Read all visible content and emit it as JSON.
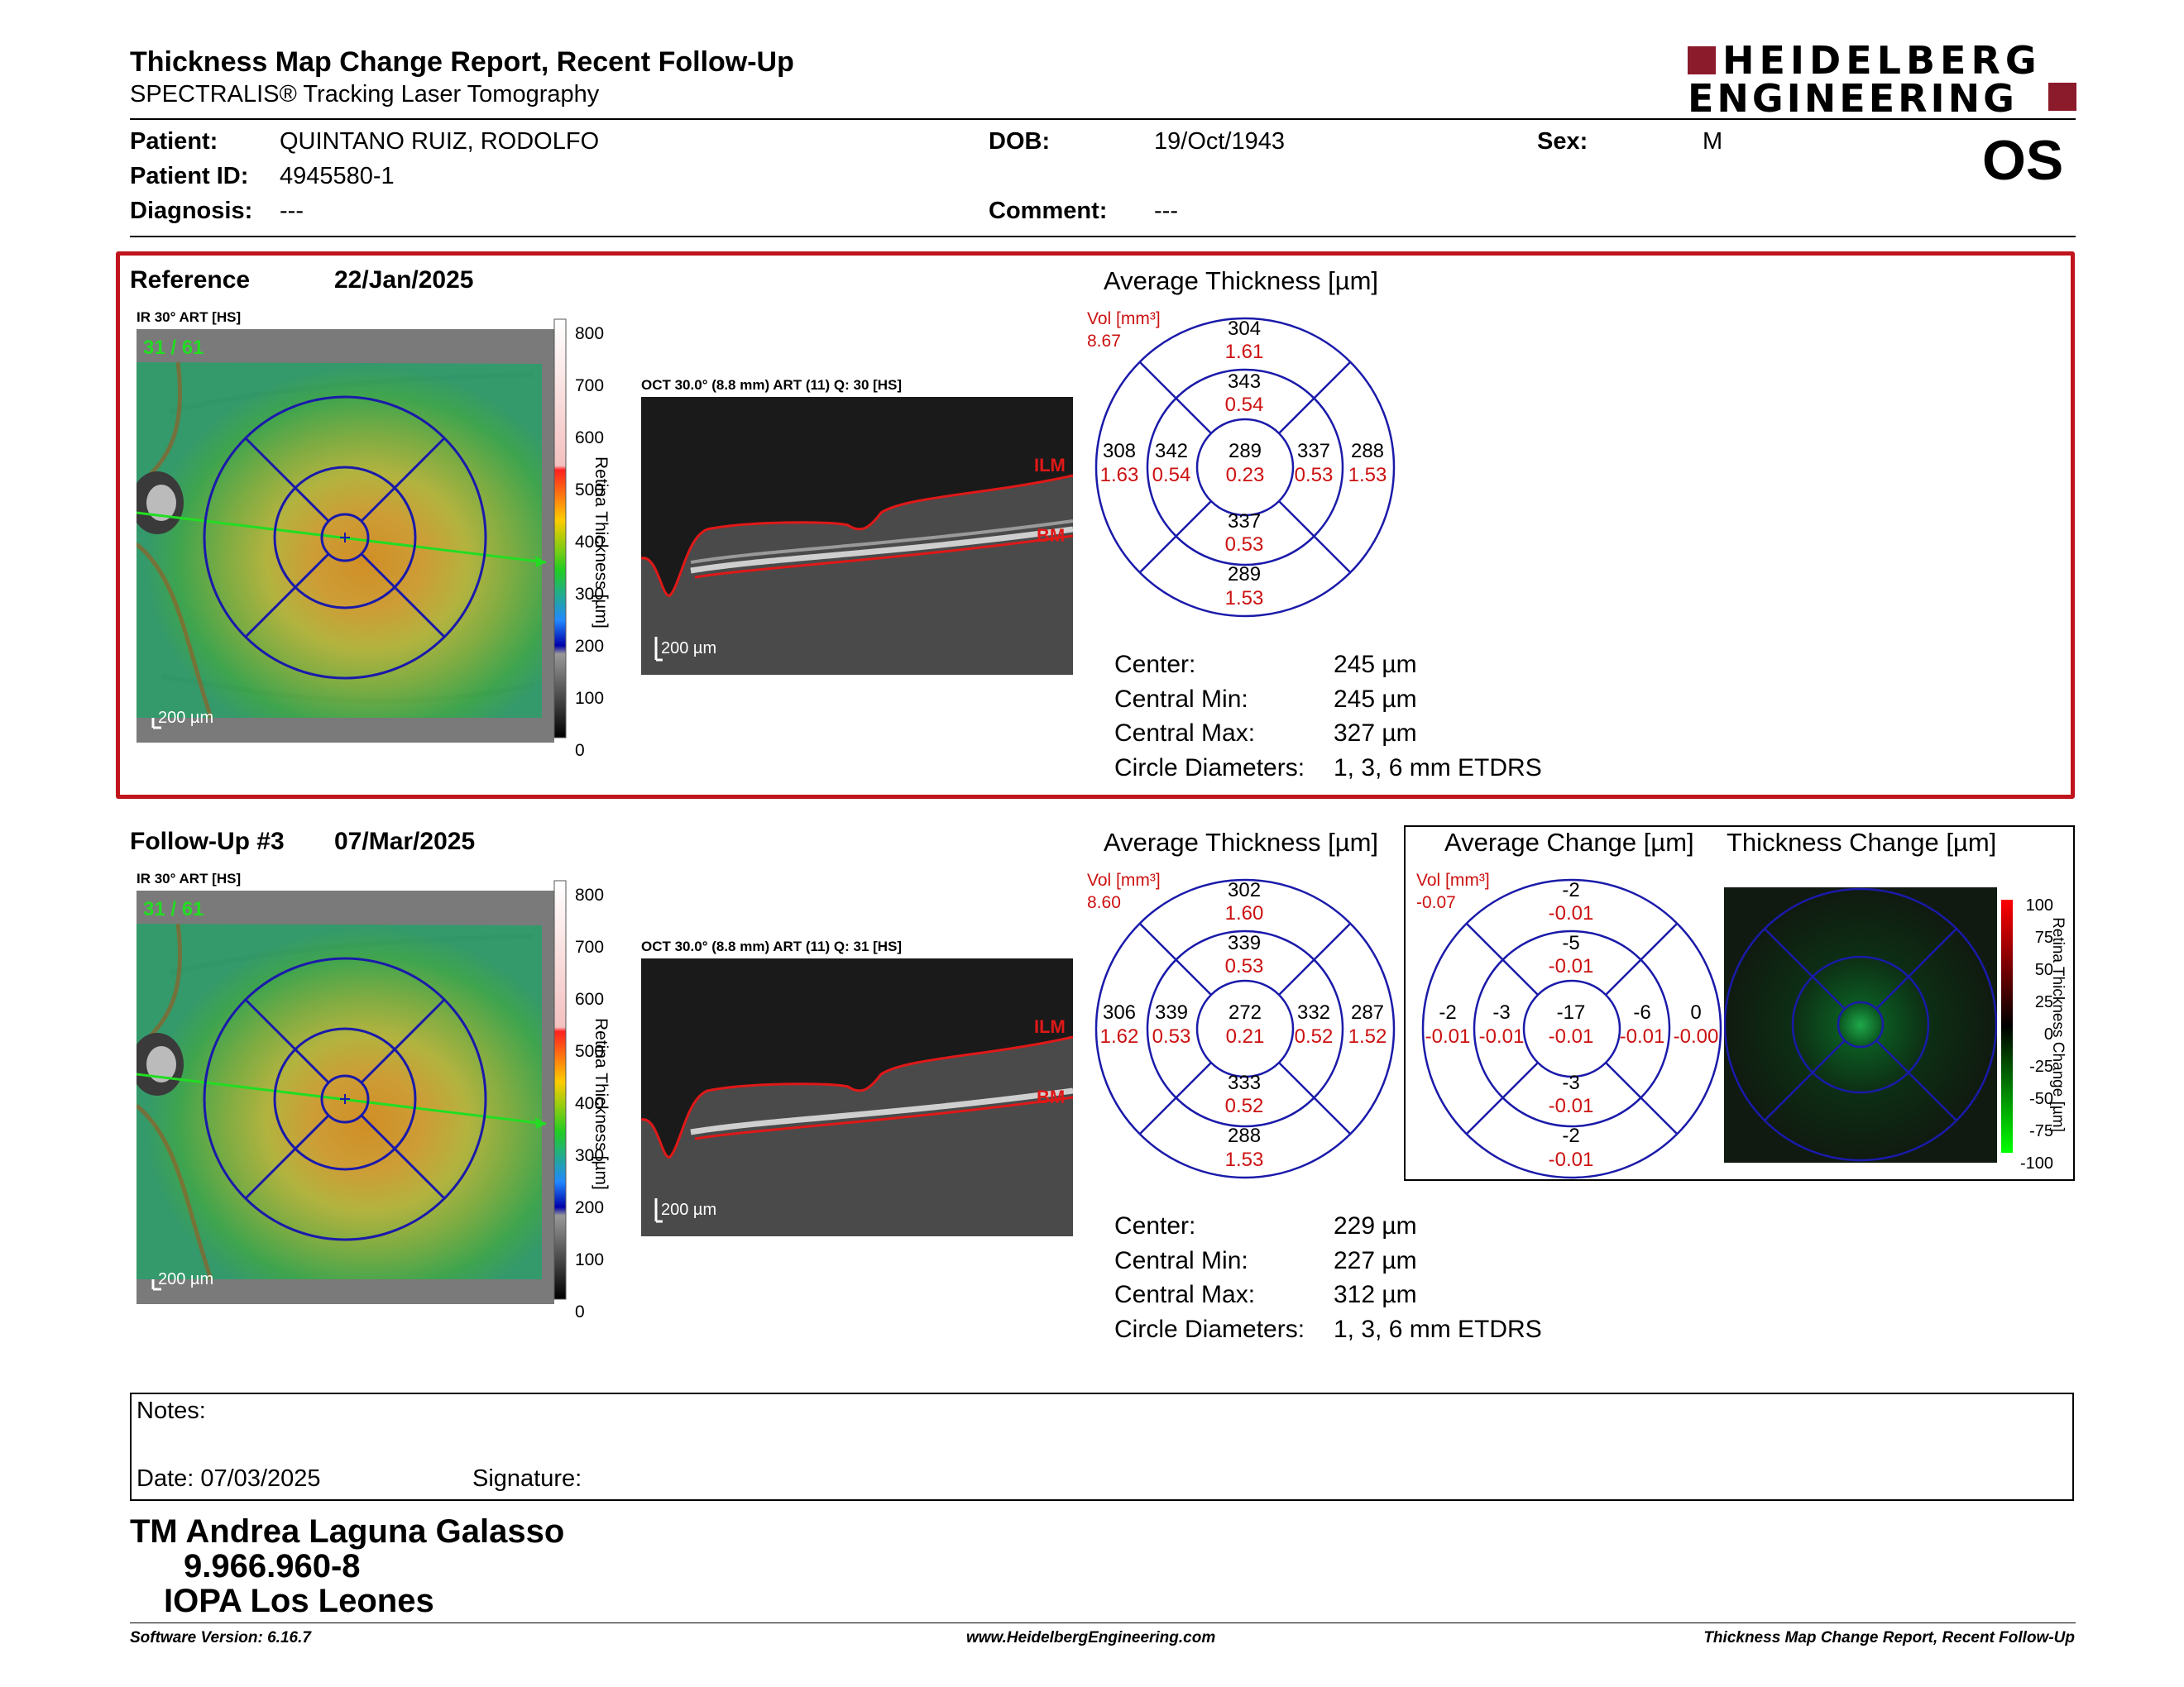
{
  "header": {
    "title": "Thickness Map Change Report, Recent Follow-Up",
    "subtitle": "SPECTRALIS® Tracking Laser Tomography",
    "logo_line1": "HEIDELBERG",
    "logo_line2": "ENGINEERING",
    "eye": "OS"
  },
  "patient": {
    "patient_label": "Patient:",
    "patient_value": "QUINTANO RUIZ, RODOLFO",
    "dob_label": "DOB:",
    "dob_value": "19/Oct/1943",
    "sex_label": "Sex:",
    "sex_value": "M",
    "id_label": "Patient ID:",
    "id_value": "4945580-1",
    "diagnosis_label": "Diagnosis:",
    "diagnosis_value": "---",
    "comment_label": "Comment:",
    "comment_value": "---"
  },
  "reference": {
    "label": "Reference",
    "date": "22/Jan/2025",
    "ir_label": "IR 30° ART [HS]",
    "counter": "31 / 61",
    "scale_ticks": [
      "800",
      "700",
      "600",
      "500",
      "400",
      "300",
      "200",
      "100",
      "0"
    ],
    "scale_title": "Retina Thickness [µm]",
    "oct_label": "OCT 30.0° (8.8 mm) ART (11) Q: 30 [HS]",
    "ilm": "ILM",
    "bm": "BM",
    "scalebar": "200 µm",
    "avg_title": "Average Thickness [µm]",
    "vol_label": "Vol [mm³]",
    "vol_total": "8.67",
    "etdrs": {
      "sup_outer": [
        "304",
        "1.61"
      ],
      "sup_inner": [
        "343",
        "0.54"
      ],
      "temp_outer": [
        "308",
        "1.63"
      ],
      "temp_inner": [
        "342",
        "0.54"
      ],
      "center": [
        "289",
        "0.23"
      ],
      "nas_inner": [
        "337",
        "0.53"
      ],
      "nas_outer": [
        "288",
        "1.53"
      ],
      "inf_inner": [
        "337",
        "0.53"
      ],
      "inf_outer": [
        "289",
        "1.53"
      ]
    },
    "stats": {
      "center_label": "Center:",
      "center_value": "245 µm",
      "min_label": "Central Min:",
      "min_value": "245 µm",
      "max_label": "Central Max:",
      "max_value": "327 µm",
      "circ_label": "Circle Diameters:",
      "circ_value": "1, 3, 6 mm ETDRS"
    }
  },
  "followup": {
    "label": "Follow-Up #3",
    "date": "07/Mar/2025",
    "ir_label": "IR 30° ART [HS]",
    "counter": "31 / 61",
    "oct_label": "OCT 30.0° (8.8 mm) ART (11) Q: 31 [HS]",
    "avg_title": "Average Thickness [µm]",
    "vol_label": "Vol [mm³]",
    "vol_total": "8.60",
    "etdrs": {
      "sup_outer": [
        "302",
        "1.60"
      ],
      "sup_inner": [
        "339",
        "0.53"
      ],
      "temp_outer": [
        "306",
        "1.62"
      ],
      "temp_inner": [
        "339",
        "0.53"
      ],
      "center": [
        "272",
        "0.21"
      ],
      "nas_inner": [
        "332",
        "0.52"
      ],
      "nas_outer": [
        "287",
        "1.52"
      ],
      "inf_inner": [
        "333",
        "0.52"
      ],
      "inf_outer": [
        "288",
        "1.53"
      ]
    },
    "stats": {
      "center_label": "Center:",
      "center_value": "229 µm",
      "min_label": "Central Min:",
      "min_value": "227 µm",
      "max_label": "Central Max:",
      "max_value": "312 µm",
      "circ_label": "Circle Diameters:",
      "circ_value": "1, 3, 6 mm ETDRS"
    },
    "change_title": "Average Change [µm]",
    "change_vol_label": "Vol [mm³]",
    "change_vol_total": "-0.07",
    "change": {
      "sup_outer": [
        "-2",
        "-0.01"
      ],
      "sup_inner": [
        "-5",
        "-0.01"
      ],
      "temp_outer": [
        "-2",
        "-0.01"
      ],
      "temp_inner": [
        "-3",
        "-0.01"
      ],
      "center": [
        "-17",
        "-0.01"
      ],
      "nas_inner": [
        "-6",
        "-0.01"
      ],
      "nas_outer": [
        "0",
        "-0.00"
      ],
      "inf_inner": [
        "-3",
        "-0.01"
      ],
      "inf_outer": [
        "-2",
        "-0.01"
      ]
    },
    "tc_title": "Thickness Change [µm]",
    "tc_ticks": [
      "100",
      "75",
      "50",
      "25",
      "0",
      "-25",
      "-50",
      "-75",
      "-100"
    ],
    "tc_scale_title": "Retina Thickness Change [µm]"
  },
  "notes": {
    "notes_label": "Notes:",
    "date_label": "Date: 07/03/2025",
    "signature_label": "Signature:"
  },
  "signature": {
    "name": "TM Andrea Laguna Galasso",
    "rut": "9.966.960-8",
    "institution": "IOPA Los Leones"
  },
  "footer": {
    "version": "Software Version: 6.16.7",
    "website": "www.HeidelbergEngineering.com",
    "report": "Thickness Map Change Report, Recent Follow-Up"
  }
}
